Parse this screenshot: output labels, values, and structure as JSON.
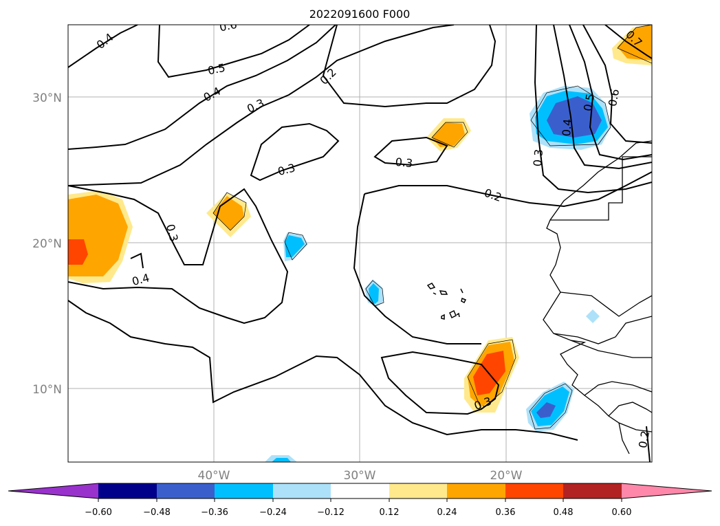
{
  "title": "2022091600 F000",
  "lat_labels": [
    "30°N",
    "20°N",
    "10°N"
  ],
  "lon_labels": [
    "40°W",
    "30°W",
    "20°W"
  ],
  "contour_labels": [
    "0.4",
    "0.6",
    "0.5",
    "0.4",
    "0.3",
    "0.2",
    "0.3",
    "0.3",
    "0.2",
    "0.3",
    "0.4",
    "0.3",
    "0.7",
    "0.6",
    "0.5",
    "0.4",
    "0.3",
    "0.2"
  ],
  "colorbar": {
    "ticks": [
      "−0.60",
      "−0.48",
      "−0.36",
      "−0.24",
      "−0.12",
      "0.12",
      "0.24",
      "0.36",
      "0.48",
      "0.60"
    ],
    "colors": [
      "#9932CC",
      "#00008B",
      "#3A5FCD",
      "#00BFFF",
      "#ADE1FA",
      "#FFFFFF",
      "#FFE98C",
      "#FFA500",
      "#FF4500",
      "#B22222",
      "#FF88AA"
    ]
  }
}
